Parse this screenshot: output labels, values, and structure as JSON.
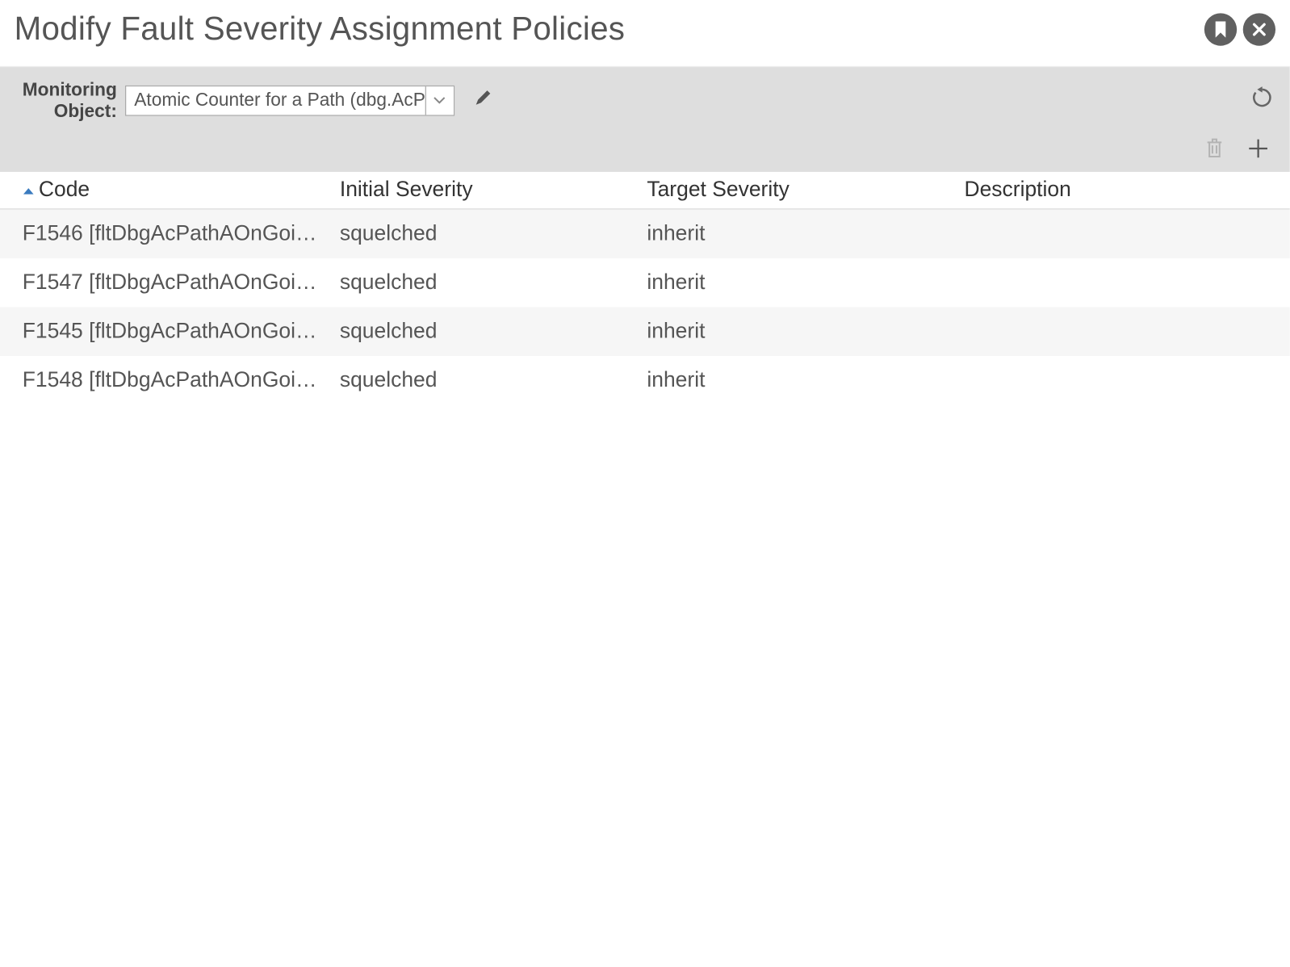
{
  "header": {
    "title": "Modify Fault Severity Assignment Policies"
  },
  "toolbar": {
    "monitoring_object_label_line1": "Monitoring",
    "monitoring_object_label_line2": "Object:",
    "selected_value": "Atomic Counter for a Path (dbg.AcPa"
  },
  "table": {
    "columns": {
      "code": "Code",
      "initial": "Initial Severity",
      "target": "Target Severity",
      "desc": "Description"
    },
    "rows": [
      {
        "code": "F1546 [fltDbgAcPathAOnGoing...",
        "initial": "squelched",
        "target": "inherit",
        "desc": ""
      },
      {
        "code": "F1547 [fltDbgAcPathAOnGoing...",
        "initial": "squelched",
        "target": "inherit",
        "desc": ""
      },
      {
        "code": "F1545 [fltDbgAcPathAOnGoing...",
        "initial": "squelched",
        "target": "inherit",
        "desc": ""
      },
      {
        "code": "F1548 [fltDbgAcPathAOnGoing...",
        "initial": "squelched",
        "target": "inherit",
        "desc": ""
      }
    ]
  },
  "colors": {
    "toolbar_bg": "#dedede",
    "row_alt_bg": "#f6f6f6",
    "header_icon_bg": "#606060",
    "text": "#555555",
    "border": "#d8d8d8"
  }
}
